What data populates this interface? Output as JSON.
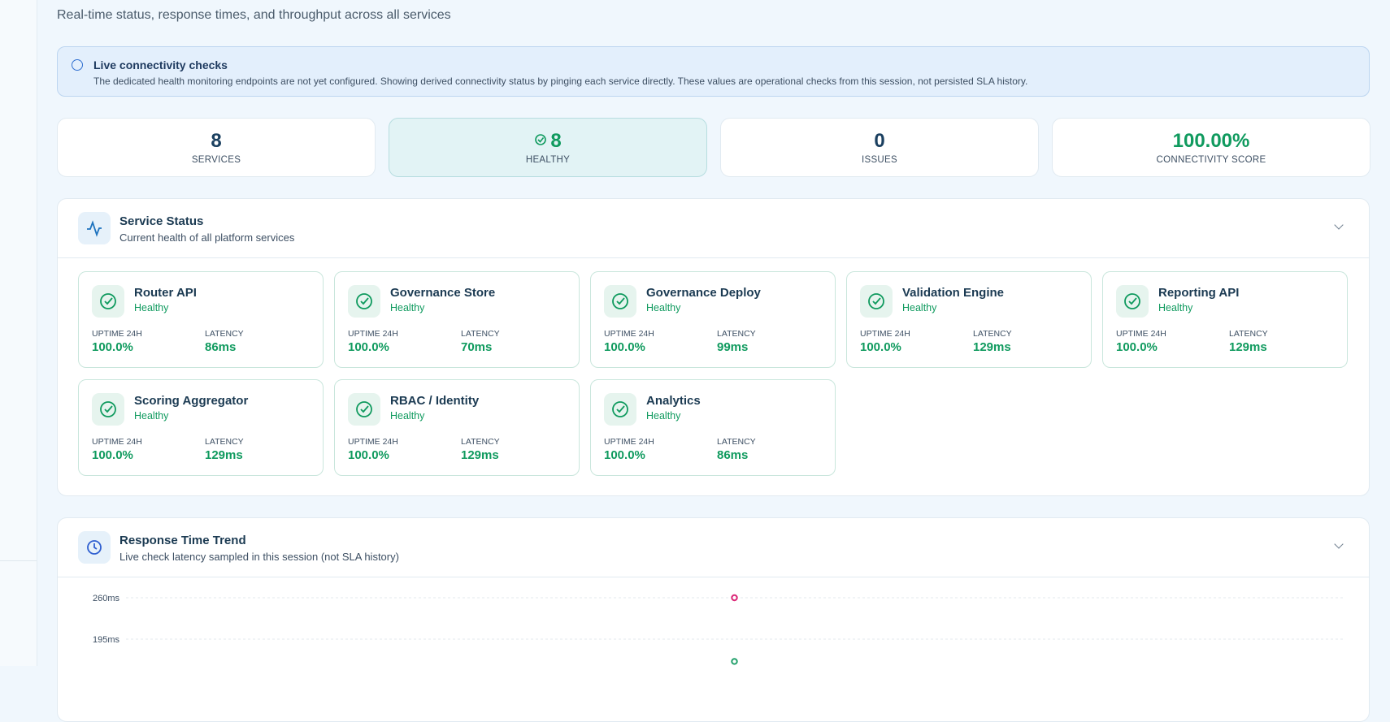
{
  "header": {
    "subtitle": "Real-time status, response times, and throughput across all services"
  },
  "alert": {
    "title": "Live connectivity checks",
    "text": "The dedicated health monitoring endpoints are not yet configured. Showing derived connectivity status by pinging each service directly. These values are operational checks from this session, not persisted SLA history."
  },
  "stats": [
    {
      "value": "8",
      "label": "SERVICES"
    },
    {
      "value": "8",
      "label": "HEALTHY"
    },
    {
      "value": "0",
      "label": "ISSUES"
    },
    {
      "value": "100.00%",
      "label": "CONNECTIVITY SCORE"
    }
  ],
  "service_status": {
    "title": "Service Status",
    "subtitle": "Current health of all platform services",
    "services": [
      {
        "name": "Router API",
        "status": "Healthy",
        "uptime_label": "UPTIME 24H",
        "uptime": "100.0%",
        "latency_label": "LATENCY",
        "latency": "86ms"
      },
      {
        "name": "Governance Store",
        "status": "Healthy",
        "uptime_label": "UPTIME 24H",
        "uptime": "100.0%",
        "latency_label": "LATENCY",
        "latency": "70ms"
      },
      {
        "name": "Governance Deploy",
        "status": "Healthy",
        "uptime_label": "UPTIME 24H",
        "uptime": "100.0%",
        "latency_label": "LATENCY",
        "latency": "99ms"
      },
      {
        "name": "Validation Engine",
        "status": "Healthy",
        "uptime_label": "UPTIME 24H",
        "uptime": "100.0%",
        "latency_label": "LATENCY",
        "latency": "129ms"
      },
      {
        "name": "Reporting API",
        "status": "Healthy",
        "uptime_label": "UPTIME 24H",
        "uptime": "100.0%",
        "latency_label": "LATENCY",
        "latency": "129ms"
      },
      {
        "name": "Scoring Aggregator",
        "status": "Healthy",
        "uptime_label": "UPTIME 24H",
        "uptime": "100.0%",
        "latency_label": "LATENCY",
        "latency": "129ms"
      },
      {
        "name": "RBAC / Identity",
        "status": "Healthy",
        "uptime_label": "UPTIME 24H",
        "uptime": "100.0%",
        "latency_label": "LATENCY",
        "latency": "129ms"
      },
      {
        "name": "Analytics",
        "status": "Healthy",
        "uptime_label": "UPTIME 24H",
        "uptime": "100.0%",
        "latency_label": "LATENCY",
        "latency": "86ms"
      }
    ]
  },
  "response_trend": {
    "title": "Response Time Trend",
    "subtitle": "Live check latency sampled in this session (not SLA history)",
    "chart_data": {
      "type": "scatter",
      "categories": [
        null
      ],
      "series": [
        {
          "color": "#db2777",
          "values": [
            260
          ]
        },
        {
          "color": "#22a06b",
          "values": [
            160
          ]
        }
      ],
      "ylim": [
        0,
        260
      ],
      "yticks": [
        {
          "value": 195,
          "label": "195ms"
        },
        {
          "value": 260,
          "label": "260ms"
        }
      ],
      "grid": true
    }
  }
}
